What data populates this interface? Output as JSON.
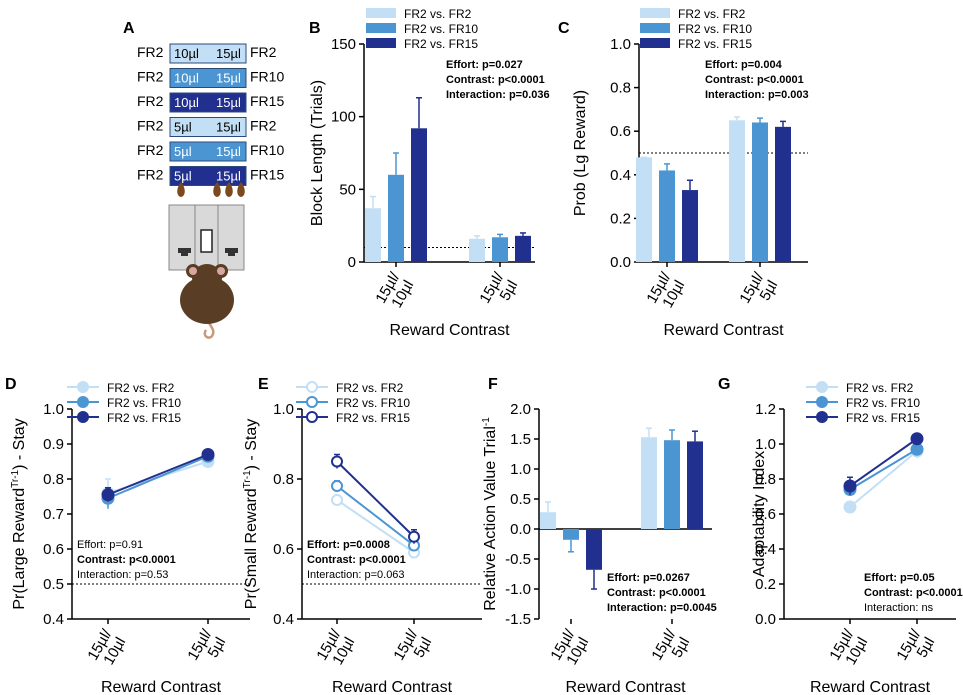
{
  "colors": {
    "fr2": "#c2dff5",
    "fr10": "#4b95d3",
    "fr15": "#21308e",
    "mouse_fur": "#5a3d25",
    "pellet": "#7a4a1e",
    "panel": "#d9d9d9"
  },
  "legend": [
    "FR2 vs. FR2",
    "FR2 vs. FR10",
    "FR2 vs. FR15"
  ],
  "panel_a": {
    "letter": "A",
    "rows": [
      {
        "left": "FR2",
        "small": "10µl",
        "large": "15µl",
        "right": "FR2",
        "series": "fr2"
      },
      {
        "left": "FR2",
        "small": "10µl",
        "large": "15µl",
        "right": "FR10",
        "series": "fr10"
      },
      {
        "left": "FR2",
        "small": "10µl",
        "large": "15µl",
        "right": "FR15",
        "series": "fr15"
      },
      {
        "left": "FR2",
        "small": "5µl",
        "large": "15µl",
        "right": "FR2",
        "series": "fr2"
      },
      {
        "left": "FR2",
        "small": "5µl",
        "large": "15µl",
        "right": "FR10",
        "series": "fr10"
      },
      {
        "left": "FR2",
        "small": "5µl",
        "large": "15µl",
        "right": "FR15",
        "series": "fr15"
      }
    ],
    "pellets": {
      "left": 1,
      "right": 3
    }
  },
  "chart_data": [
    {
      "id": "B",
      "letter": "B",
      "type": "bar",
      "categories": [
        "15µl/\n10µl",
        "15µl/\n5µl"
      ],
      "series": [
        {
          "name": "FR2 vs. FR2",
          "values": [
            37,
            16
          ],
          "errors": [
            8,
            2
          ]
        },
        {
          "name": "FR2 vs. FR10",
          "values": [
            60,
            17
          ],
          "errors": [
            15,
            2
          ]
        },
        {
          "name": "FR2 vs. FR15",
          "values": [
            92,
            18
          ],
          "errors": [
            21,
            2
          ]
        }
      ],
      "xlabel": "Reward Contrast",
      "ylabel": "Block Length (Trials)",
      "ylim": [
        0,
        150
      ],
      "yticks": [
        "0",
        "50",
        "100",
        "150"
      ],
      "ytick_values": [
        0,
        50,
        100,
        150
      ],
      "reference_line": 10,
      "stats": [
        "Effort: p=0.027",
        "Contrast: p<0.0001",
        "Interaction: p=0.036"
      ],
      "stats_bold": [
        true,
        true,
        true
      ],
      "legend_position": "top"
    },
    {
      "id": "C",
      "letter": "C",
      "type": "bar",
      "categories": [
        "15µl/\n10µl",
        "15µl/\n5µl"
      ],
      "series": [
        {
          "name": "FR2 vs. FR2",
          "values": [
            0.48,
            0.65
          ],
          "errors": [
            0,
            0.015
          ]
        },
        {
          "name": "FR2 vs. FR10",
          "values": [
            0.42,
            0.64
          ],
          "errors": [
            0.03,
            0.02
          ]
        },
        {
          "name": "FR2 vs. FR15",
          "values": [
            0.33,
            0.62
          ],
          "errors": [
            0.045,
            0.025
          ]
        }
      ],
      "xlabel": "Reward Contrast",
      "ylabel": "Prob (Lg Reward)",
      "ylim": [
        0,
        1.0
      ],
      "yticks": [
        "0.0",
        "0.2",
        "0.4",
        "0.6",
        "0.8",
        "1.0"
      ],
      "ytick_values": [
        0,
        0.2,
        0.4,
        0.6,
        0.8,
        1.0
      ],
      "reference_line": 0.5,
      "stats": [
        "Effort: p=0.004",
        "Contrast: p<0.0001",
        "Interaction: p=0.003"
      ],
      "stats_bold": [
        true,
        true,
        true
      ],
      "legend_position": "top"
    },
    {
      "id": "D",
      "letter": "D",
      "type": "line",
      "categories": [
        "15µl/\n10µl",
        "15µl/\n5µl"
      ],
      "series": [
        {
          "name": "FR2 vs. FR2",
          "values": [
            0.76,
            0.85
          ],
          "errors": [
            0.04,
            0.01
          ]
        },
        {
          "name": "FR2 vs. FR10",
          "values": [
            0.745,
            0.865
          ],
          "errors": [
            0.03,
            0.01
          ]
        },
        {
          "name": "FR2 vs. FR15",
          "values": [
            0.755,
            0.87
          ],
          "errors": [
            0.02,
            0.01
          ]
        }
      ],
      "xlabel": "Reward Contrast",
      "ylabel": "Pr(Large Reward",
      "ylabel_sup": "Tr-1",
      "ylabel_tail": ") - Stay",
      "ylim": [
        0.4,
        1.0
      ],
      "yticks": [
        "0.4",
        "0.5",
        "0.6",
        "0.7",
        "0.8",
        "0.9",
        "1.0"
      ],
      "ytick_values": [
        0.4,
        0.5,
        0.6,
        0.7,
        0.8,
        0.9,
        1.0
      ],
      "reference_line": 0.5,
      "stats": [
        "Effort: p=0.91",
        "Contrast: p<0.0001",
        "Interaction: p=0.53"
      ],
      "stats_bold": [
        false,
        true,
        false
      ],
      "legend_position": "top"
    },
    {
      "id": "E",
      "letter": "E",
      "type": "line",
      "categories": [
        "15µl/\n10µl",
        "15µl/\n5µl"
      ],
      "series": [
        {
          "name": "FR2 vs. FR2",
          "values": [
            0.74,
            0.59
          ],
          "errors": [
            0.01,
            0.01
          ]
        },
        {
          "name": "FR2 vs. FR10",
          "values": [
            0.78,
            0.61
          ],
          "errors": [
            0.015,
            0.015
          ]
        },
        {
          "name": "FR2 vs. FR15",
          "values": [
            0.85,
            0.635
          ],
          "errors": [
            0.02,
            0.02
          ]
        }
      ],
      "xlabel": "Reward Contrast",
      "ylabel": "Pr(Small Reward",
      "ylabel_sup": "Tr-1",
      "ylabel_tail": ") - Stay",
      "ylim": [
        0.4,
        1.0
      ],
      "yticks": [
        "0.4",
        "0.6",
        "0.8",
        "1.0"
      ],
      "ytick_values": [
        0.4,
        0.6,
        0.8,
        1.0
      ],
      "reference_line": 0.5,
      "stats": [
        "Effort: p=0.0008",
        "Contrast: p<0.0001",
        "Interaction: p=0.063"
      ],
      "stats_bold": [
        true,
        true,
        false
      ],
      "open_markers": true,
      "legend_position": "top"
    },
    {
      "id": "F",
      "letter": "F",
      "type": "bar",
      "categories": [
        "15µl/\n10µl",
        "15µl/\n5µl"
      ],
      "series": [
        {
          "name": "FR2 vs. FR2",
          "values": [
            0.28,
            1.53
          ],
          "errors": [
            0.17,
            0.15
          ]
        },
        {
          "name": "FR2 vs. FR10",
          "values": [
            -0.18,
            1.48
          ],
          "errors": [
            0.2,
            0.17
          ]
        },
        {
          "name": "FR2 vs. FR15",
          "values": [
            -0.68,
            1.46
          ],
          "errors": [
            0.32,
            0.17
          ]
        }
      ],
      "xlabel": "Reward Contrast",
      "ylabel": "Relative Action Value Trial",
      "ylabel_sup": "-1",
      "ylabel_tail": "",
      "ylim": [
        -1.5,
        2.0
      ],
      "yticks": [
        "-1.5",
        "-1.0",
        "-0.5",
        "0.0",
        "0.5",
        "1.0",
        "1.5",
        "2.0"
      ],
      "ytick_values": [
        -1.5,
        -1.0,
        -0.5,
        0,
        0.5,
        1.0,
        1.5,
        2.0
      ],
      "reference_line": null,
      "stats": [
        "Effort: p=0.0267",
        "Contrast: p<0.0001",
        "Interaction: p=0.0045"
      ],
      "stats_bold": [
        true,
        true,
        true
      ],
      "legend_position": "none"
    },
    {
      "id": "G",
      "letter": "G",
      "type": "line",
      "categories": [
        "15µl/\n10µl",
        "15µl/\n5µl"
      ],
      "series": [
        {
          "name": "FR2 vs. FR2",
          "values": [
            0.64,
            0.96
          ],
          "errors": [
            0.03,
            0.04
          ]
        },
        {
          "name": "FR2 vs. FR10",
          "values": [
            0.74,
            0.97
          ],
          "errors": [
            0.03,
            0.03
          ]
        },
        {
          "name": "FR2 vs. FR15",
          "values": [
            0.76,
            1.03
          ],
          "errors": [
            0.05,
            0.02
          ]
        }
      ],
      "xlabel": "Reward Contrast",
      "ylabel": "Adaptability Index",
      "ylim": [
        0,
        1.2
      ],
      "yticks": [
        "0.0",
        "0.2",
        "0.4",
        "0.6",
        "0.8",
        "1.0",
        "1.2"
      ],
      "ytick_values": [
        0,
        0.2,
        0.4,
        0.6,
        0.8,
        1.0,
        1.2
      ],
      "reference_line": null,
      "stats": [
        "Effort: p=0.05",
        "Contrast: p<0.0001",
        "Interaction: ns"
      ],
      "stats_bold": [
        true,
        true,
        false
      ],
      "legend_position": "top"
    }
  ]
}
